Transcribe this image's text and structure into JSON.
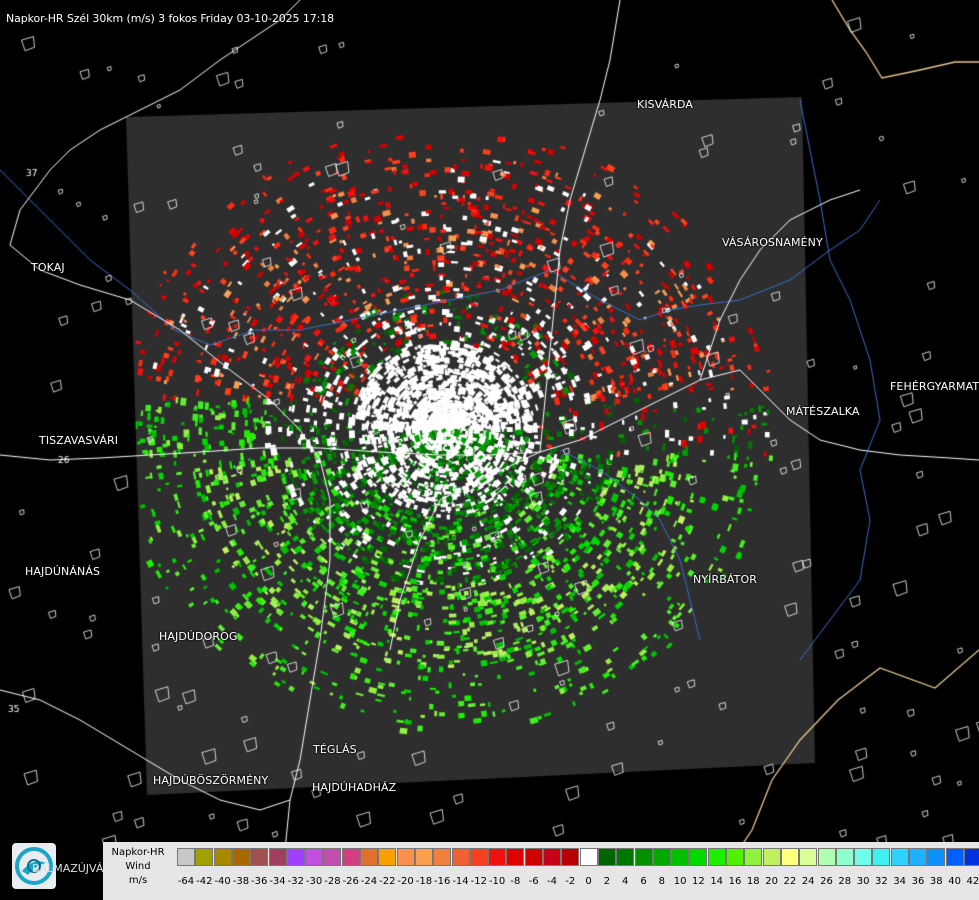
{
  "header": {
    "title": "Napkor-HR Szél 30km (m/s) 3 fokos Friday 03-10-2025 17:18"
  },
  "map": {
    "background_color": "#000000",
    "radar_area_color": "#2e2e2e",
    "place_labels": [
      {
        "name": "KISVÁRDA"
      },
      {
        "name": "VÁSÁROSNAMÉNY"
      },
      {
        "name": "TOKAJ"
      },
      {
        "name": "FEHÉRGYARMAT"
      },
      {
        "name": "MÁTÉSZALKA"
      },
      {
        "name": "TISZAVASVÁRI"
      },
      {
        "name": "HAJDÚNÁNÁS"
      },
      {
        "name": "NYÍRBÁTOR"
      },
      {
        "name": "HAJDÚDOROG"
      },
      {
        "name": "TÉGLÁS"
      },
      {
        "name": "HAJDÚBÖSZÖRMÉNY"
      },
      {
        "name": "HAJDÚHADHÁZ"
      },
      {
        "name": "BALMAZÚJVÁROS"
      }
    ],
    "road_numbers": [
      "37",
      "26",
      "35"
    ]
  },
  "logo": {
    "icon": "met-service-logo-icon"
  },
  "legend": {
    "title_line1": "Napkor-HR",
    "title_line2": "Wind",
    "title_line3": "m/s",
    "swatch_colors": [
      "#c8c8c8",
      "#a0a000",
      "#a88800",
      "#a86800",
      "#a05050",
      "#a04060",
      "#a040ff",
      "#c050e0",
      "#c050b0",
      "#d04080",
      "#e07030",
      "#f8a000",
      "#f89050",
      "#f8a050",
      "#f08040",
      "#f06030",
      "#f84020",
      "#f01010",
      "#e00000",
      "#d00000",
      "#c80018",
      "#b80000",
      "#ffffff",
      "#006400",
      "#007800",
      "#009000",
      "#00a800",
      "#00c000",
      "#00d800",
      "#20ee00",
      "#50f000",
      "#90f040",
      "#c0f060",
      "#ffff80",
      "#d8ff98",
      "#b0ffb0",
      "#90ffd0",
      "#70ffe8",
      "#40f0f0",
      "#30d0ff",
      "#20b0ff",
      "#1090ff",
      "#0060ff",
      "#0030e0",
      "#0000c0"
    ],
    "tick_labels": [
      "-64",
      "-42",
      "-40",
      "-38",
      "-36",
      "-34",
      "-32",
      "-30",
      "-28",
      "-26",
      "-24",
      "-22",
      "-20",
      "-18",
      "-16",
      "-14",
      "-12",
      "-10",
      "-8",
      "-6",
      "-4",
      "-2",
      "0",
      "2",
      "4",
      "6",
      "8",
      "10",
      "12",
      "14",
      "16",
      "18",
      "20",
      "22",
      "24",
      "26",
      "28",
      "30",
      "32",
      "34",
      "36",
      "38",
      "40",
      "42"
    ]
  }
}
